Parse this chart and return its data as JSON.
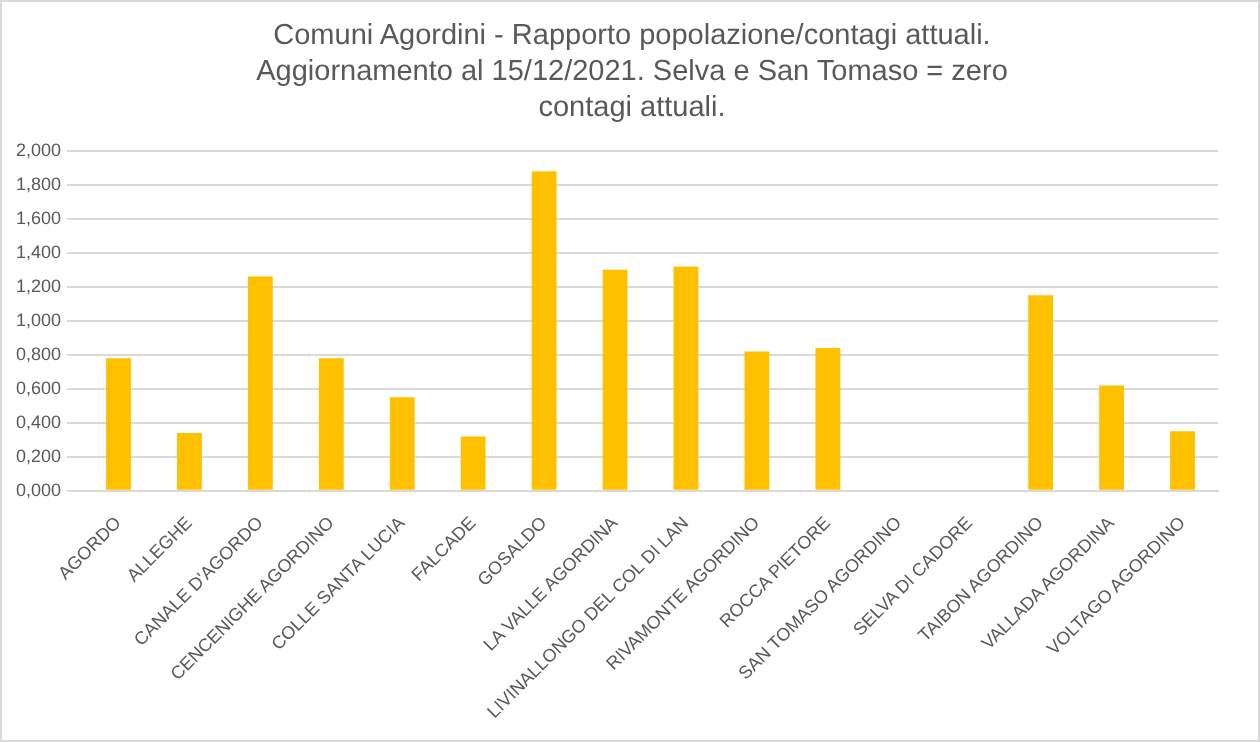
{
  "chart_data": {
    "type": "bar",
    "title": "Comuni Agordini - Rapporto popolazione/contagi attuali. Aggiornamento al 15/12/2021. Selva e  San Tomaso = zero contagi attuali.",
    "categories": [
      "AGORDO",
      "ALLEGHE",
      "CANALE D'AGORDO",
      "CENCENIGHE AGORDINO",
      "COLLE SANTA LUCIA",
      "FALCADE",
      "GOSALDO",
      "LA VALLE AGORDINA",
      "LIVINALLONGO DEL COL DI LAN",
      "RIVAMONTE AGORDINO",
      "ROCCA PIETORE",
      "SAN TOMASO AGORDINO",
      "SELVA DI CADORE",
      "TAIBON AGORDINO",
      "VALLADA AGORDINA",
      "VOLTAGO AGORDINO"
    ],
    "values": [
      0.78,
      0.34,
      1.26,
      0.78,
      0.55,
      0.32,
      1.88,
      1.3,
      1.32,
      0.82,
      0.84,
      0,
      0,
      1.15,
      0.62,
      0.35
    ],
    "color": "#ffc000",
    "ylim": [
      0,
      2
    ],
    "yticks": [
      {
        "value": 0,
        "label": "0,000"
      },
      {
        "value": 0.2,
        "label": "0,200"
      },
      {
        "value": 0.4,
        "label": "0,400"
      },
      {
        "value": 0.6,
        "label": "0,600"
      },
      {
        "value": 0.8,
        "label": "0,800"
      },
      {
        "value": 1,
        "label": "1,000"
      },
      {
        "value": 1.2,
        "label": "1,200"
      },
      {
        "value": 1.4,
        "label": "1,400"
      },
      {
        "value": 1.6,
        "label": "1,600"
      },
      {
        "value": 1.8,
        "label": "1,800"
      },
      {
        "value": 2,
        "label": "2,000"
      }
    ],
    "grid": "y"
  }
}
